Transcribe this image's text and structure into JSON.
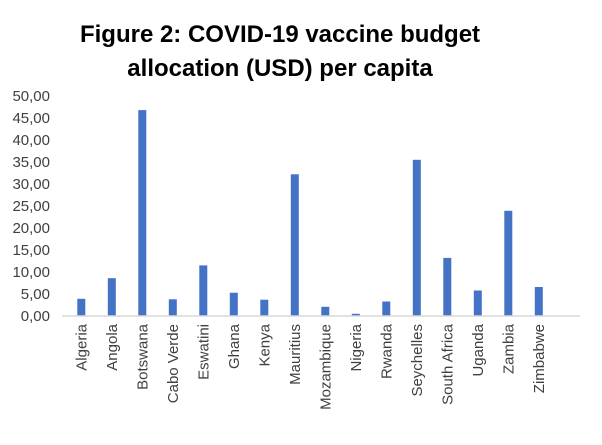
{
  "chart_data": {
    "type": "bar",
    "title": "Figure 2: COVID-19 vaccine budget allocation (USD) per capita",
    "title_lines": [
      "Figure 2: COVID-19 vaccine budget",
      "allocation (USD) per capita"
    ],
    "categories": [
      "Algeria",
      "Angola",
      "Botswana",
      "Cabo Verde",
      "Eswatini",
      "Ghana",
      "Kenya",
      "Mauritius",
      "Mozambique",
      "Nigeria",
      "Rwanda",
      "Seychelles",
      "South Africa",
      "Uganda",
      "Zambia",
      "Zimbabwe"
    ],
    "values": [
      3.9,
      8.6,
      46.8,
      3.8,
      11.5,
      5.3,
      3.7,
      32.2,
      2.1,
      0.5,
      3.3,
      35.5,
      13.2,
      5.8,
      23.9,
      6.6
    ],
    "ylim": [
      0,
      50
    ],
    "yticks": [
      0,
      5,
      10,
      15,
      20,
      25,
      30,
      35,
      40,
      45,
      50
    ],
    "ytick_labels": [
      "0,00",
      "5,00",
      "10,00",
      "15,00",
      "20,00",
      "25,00",
      "30,00",
      "35,00",
      "40,00",
      "45,00",
      "50,00"
    ],
    "xlabel": "",
    "ylabel": "",
    "grid": false,
    "legend": "none",
    "bar_color": "#4472C4",
    "axis_color": "#D9D9D9",
    "text_color": "#404040"
  }
}
